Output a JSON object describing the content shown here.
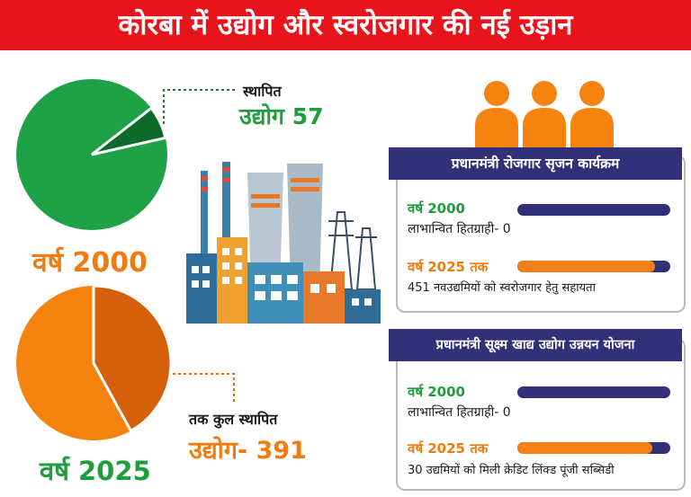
{
  "title": "कोरबा में उद्योग और स्वरोजगार की नई उड़ान",
  "section_2000": {
    "label_line1": "स्थापित",
    "label_line2": "उद्योग 57",
    "year_label": "वर्ष 2000",
    "pie_share": 0.07,
    "colors": {
      "main": "#1fa247",
      "slice": "#0e6a2c"
    }
  },
  "section_2025": {
    "label_line1": "तक कुल स्थापित",
    "label_line2": "उद्योग- 391",
    "year_label": "वर्ष 2025",
    "pie_share": 0.42,
    "colors": {
      "main": "#f5830f",
      "slice": "#d65f0a"
    }
  },
  "cards": [
    {
      "heading": "प्रधानमंत्री रोजगार सृजन कार्यक्रम",
      "row1_year": "वर्ष 2000",
      "row1_text": "लाभान्वित हितग्राही- 0",
      "row1_progress": 0,
      "row2_year": "वर्ष 2025 तक",
      "row2_text": "451 नवउद्यमियों को स्वरोजगार हेतु सहायता",
      "row2_progress": 0.9
    },
    {
      "heading": "प्रधानमंत्री सूक्ष्म खाद्य उद्योग उन्नयन योजना",
      "row1_year": "वर्ष 2000",
      "row1_text": "लाभान्वित हितग्राही- 0",
      "row1_progress": 0,
      "row2_year": "वर्ष 2025 तक",
      "row2_text": "30 उद्यमियों को मिली क्रेडिट लिंक्ड पूंजी सब्सिडी",
      "row2_progress": 0.88
    }
  ],
  "colors": {
    "banner": "#e8141c",
    "green": "#1e9e3c",
    "orange": "#f07c10",
    "navy": "#33307a",
    "bar_fill": "#f57f17"
  }
}
